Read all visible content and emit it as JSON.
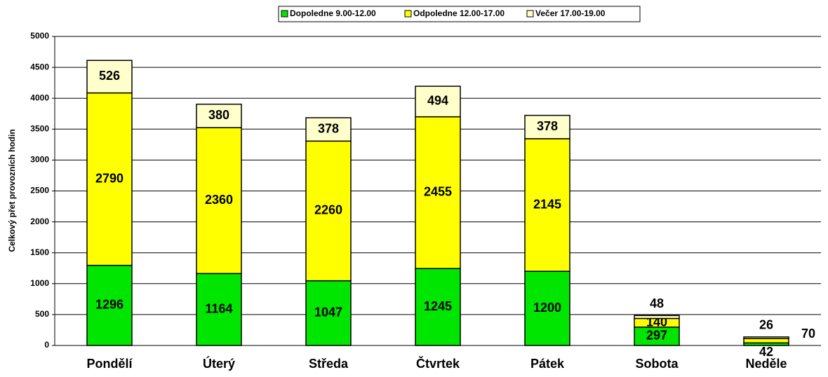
{
  "chart_data": {
    "type": "stacked_bar",
    "y_label": "Celkový přet provozních hodin",
    "categories": [
      "Pondělí",
      "Úterý",
      "Středa",
      "Čtvrtek",
      "Pátek",
      "Sobota",
      "Neděle"
    ],
    "series": [
      {
        "name": "Dopoledne 9.00-12.00",
        "color": "#00e600",
        "values": [
          1296,
          1164,
          1047,
          1245,
          1200,
          297,
          42
        ]
      },
      {
        "name": "Odpoledne 12.00-17.00",
        "color": "#ffff00",
        "values": [
          2790,
          2360,
          2260,
          2455,
          2145,
          140,
          70
        ]
      },
      {
        "name": "Večer 17.00-19.00",
        "color": "#ffffcc",
        "values": [
          526,
          380,
          378,
          494,
          378,
          48,
          26
        ]
      }
    ],
    "ylim": [
      0,
      5000
    ],
    "yticks": [
      0,
      500,
      1000,
      1500,
      2000,
      2500,
      3000,
      3500,
      4000,
      4500,
      5000
    ],
    "grid": true,
    "legend": "top"
  }
}
